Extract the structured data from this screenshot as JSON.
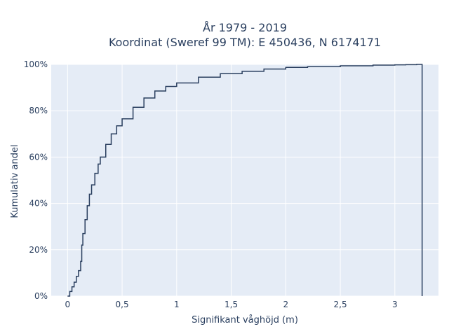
{
  "chart_data": {
    "type": "line",
    "line_shape": "step",
    "title": "År 1979 - 2019",
    "subtitle": "Koordinat (Sweref 99 TM): E 450436, N 6174171",
    "xlabel": "Signifikant våghöjd (m)",
    "ylabel": "Kumulativ andel",
    "xlim": [
      -0.15,
      3.4
    ],
    "ylim": [
      0,
      1.0
    ],
    "x_ticks": [
      0,
      0.5,
      1,
      1.5,
      2,
      2.5,
      3
    ],
    "x_tick_labels": [
      "0",
      "0,5",
      "1",
      "1,5",
      "2",
      "2,5",
      "3"
    ],
    "y_ticks": [
      0,
      0.2,
      0.4,
      0.6,
      0.8,
      1.0
    ],
    "y_tick_labels": [
      "0%",
      "20%",
      "40%",
      "60%",
      "80%",
      "100%"
    ],
    "grid": true,
    "legend": false,
    "series": [
      {
        "color": "#2a3f5f",
        "x": [
          0.0,
          0.02,
          0.04,
          0.06,
          0.08,
          0.1,
          0.12,
          0.13,
          0.14,
          0.16,
          0.18,
          0.2,
          0.22,
          0.25,
          0.28,
          0.3,
          0.35,
          0.4,
          0.45,
          0.5,
          0.6,
          0.7,
          0.8,
          0.9,
          1.0,
          1.2,
          1.4,
          1.6,
          1.8,
          2.0,
          2.2,
          2.5,
          2.8,
          3.0,
          3.1,
          3.2,
          3.25,
          3.25
        ],
        "y": [
          0.0,
          0.02,
          0.04,
          0.06,
          0.085,
          0.11,
          0.15,
          0.22,
          0.27,
          0.33,
          0.39,
          0.44,
          0.48,
          0.53,
          0.57,
          0.6,
          0.655,
          0.7,
          0.735,
          0.765,
          0.815,
          0.855,
          0.885,
          0.905,
          0.92,
          0.945,
          0.96,
          0.97,
          0.98,
          0.987,
          0.99,
          0.994,
          0.997,
          0.998,
          0.999,
          1.0,
          1.0,
          0.0
        ]
      }
    ]
  }
}
